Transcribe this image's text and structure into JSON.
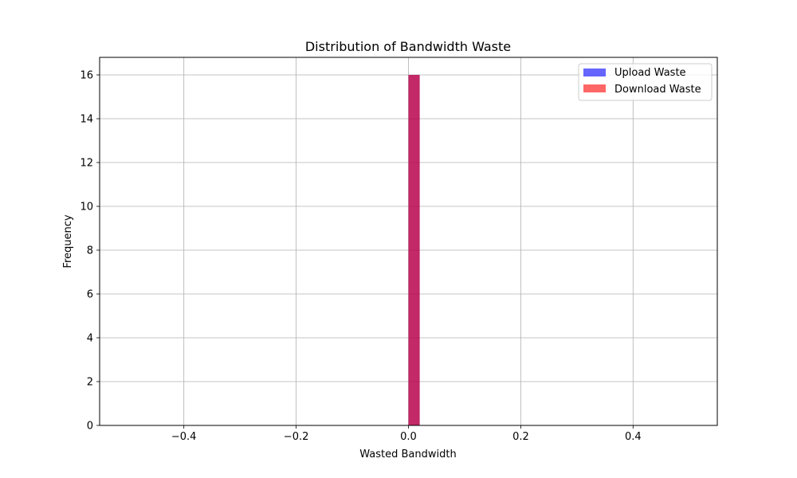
{
  "chart_data": {
    "type": "bar",
    "title": "Distribution of Bandwidth Waste",
    "xlabel": "Wasted Bandwidth",
    "ylabel": "Frequency",
    "xlim": [
      -0.55,
      0.55
    ],
    "ylim": [
      0,
      16.8
    ],
    "xticks": [
      -0.4,
      -0.2,
      0.0,
      0.2,
      0.4
    ],
    "xtick_labels": [
      "−0.4",
      "−0.2",
      "0.0",
      "0.2",
      "0.4"
    ],
    "yticks": [
      0,
      2,
      4,
      6,
      8,
      10,
      12,
      14,
      16
    ],
    "ytick_labels": [
      "0",
      "2",
      "4",
      "6",
      "8",
      "10",
      "12",
      "14",
      "16"
    ],
    "grid": true,
    "legend_position": "top-right",
    "series": [
      {
        "name": "Upload Waste",
        "color": "#0000ff",
        "opacity": 0.6,
        "bins": [
          {
            "x0": 0.0,
            "x1": 0.02,
            "value": 16
          }
        ]
      },
      {
        "name": "Download Waste",
        "color": "#ff0000",
        "opacity": 0.6,
        "bins": [
          {
            "x0": 0.0,
            "x1": 0.02,
            "value": 16
          }
        ]
      }
    ]
  }
}
